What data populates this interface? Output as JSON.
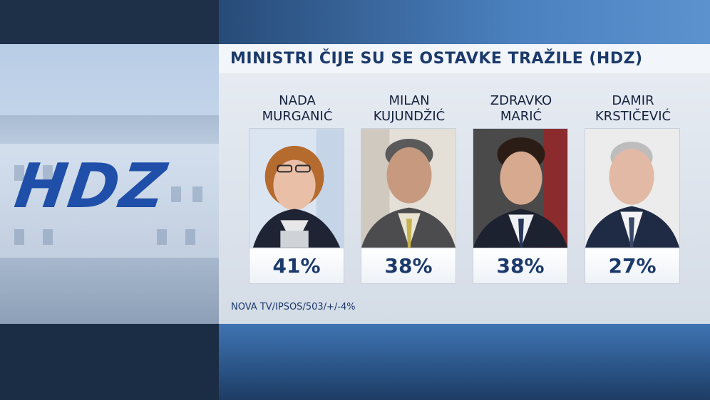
{
  "logo": {
    "text": "HDZ"
  },
  "title": "MINISTRI ČIJE SU SE OSTAVKE TRAŽILE (HDZ)",
  "candidates": [
    {
      "first": "NADA",
      "last": "MURGANIĆ",
      "percent": "41%",
      "value": 41
    },
    {
      "first": "MILAN",
      "last": "KUJUNDŽIĆ",
      "percent": "38%",
      "value": 38
    },
    {
      "first": "ZDRAVKO",
      "last": "MARIĆ",
      "percent": "38%",
      "value": 38
    },
    {
      "first": "DAMIR",
      "last": "KRSTIČEVIĆ",
      "percent": "27%",
      "value": 27
    }
  ],
  "source": "NOVA TV/IPSOS/503/+/-4%",
  "colors": {
    "title": "#1b3a6b",
    "logo_blue": "#1f4fa8",
    "logo_red": "#d4262c"
  }
}
